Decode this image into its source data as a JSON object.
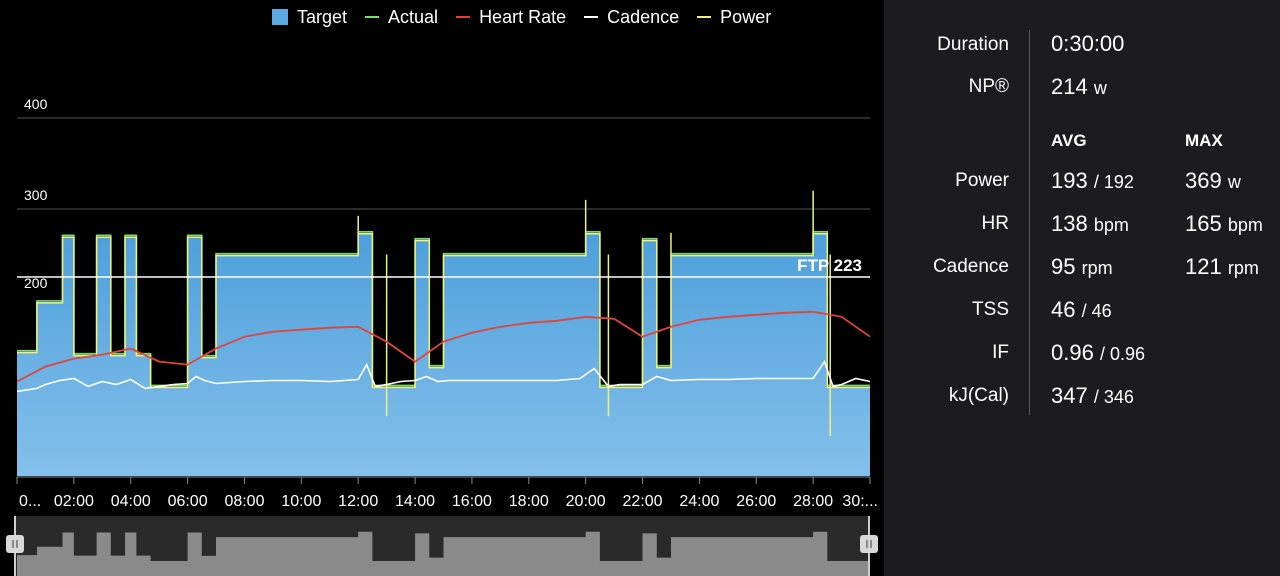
{
  "legend": [
    {
      "label": "Target",
      "color": "#5aa9e1",
      "kind": "box"
    },
    {
      "label": "Actual",
      "color": "#7ddc6a",
      "kind": "line"
    },
    {
      "label": "Heart Rate",
      "color": "#e0453a",
      "kind": "line"
    },
    {
      "label": "Cadence",
      "color": "#ffffff",
      "kind": "line"
    },
    {
      "label": "Power",
      "color": "#f2f27a",
      "kind": "line"
    }
  ],
  "chart_data": {
    "type": "area",
    "ylim": [
      0,
      420
    ],
    "y_ticks": [
      "200",
      "300",
      "400"
    ],
    "x_ticks": [
      "0...",
      "02:00",
      "04:00",
      "06:00",
      "08:00",
      "10:00",
      "12:00",
      "14:00",
      "16:00",
      "18:00",
      "20:00",
      "22:00",
      "24:00",
      "26:00",
      "28:00",
      "30:..."
    ],
    "ftp_label": "FTP 223",
    "ftp_value": 223,
    "series": [
      {
        "name": "Target",
        "x": [
          0,
          0.7,
          0.7,
          1.6,
          1.6,
          2.0,
          2.0,
          2.8,
          2.8,
          3.3,
          3.3,
          3.8,
          3.8,
          4.2,
          4.2,
          4.7,
          4.7,
          6.0,
          6.0,
          6.5,
          6.5,
          7.0,
          7.0,
          12.0,
          12.0,
          12.5,
          12.5,
          14.0,
          14.0,
          14.5,
          14.5,
          15.0,
          15.0,
          20.0,
          20.0,
          20.5,
          20.5,
          22.0,
          22.0,
          22.5,
          22.5,
          23.0,
          23.0,
          28.0,
          28.0,
          28.5,
          28.5,
          30.0
        ],
        "values": [
          125,
          125,
          175,
          175,
          260,
          260,
          122,
          122,
          260,
          260,
          122,
          122,
          260,
          260,
          122,
          122,
          90,
          90,
          260,
          260,
          120,
          120,
          233,
          233,
          265,
          265,
          90,
          90,
          255,
          255,
          110,
          110,
          233,
          233,
          265,
          265,
          90,
          90,
          255,
          255,
          110,
          110,
          233,
          233,
          265,
          265,
          90,
          90
        ]
      },
      {
        "name": "Heart Rate",
        "x": [
          0,
          1,
          2,
          3,
          4,
          5,
          6,
          7,
          8,
          9,
          10,
          11,
          12,
          13,
          14,
          15,
          16,
          17,
          18,
          19,
          20,
          21,
          22,
          23,
          24,
          25,
          26,
          27,
          28,
          29,
          30
        ],
        "values": [
          95,
          110,
          118,
          122,
          128,
          115,
          112,
          128,
          140,
          145,
          147,
          149,
          150,
          135,
          115,
          135,
          144,
          150,
          154,
          156,
          160,
          158,
          140,
          150,
          157,
          160,
          162,
          164,
          165,
          160,
          140
        ]
      },
      {
        "name": "Cadence",
        "x": [
          0,
          0.7,
          1.0,
          1.5,
          2.0,
          2.5,
          3.0,
          3.5,
          4.0,
          4.5,
          5.0,
          5.5,
          6.0,
          6.3,
          6.6,
          7.0,
          8.0,
          9.0,
          10.0,
          11.0,
          12.0,
          12.3,
          12.6,
          13.0,
          13.5,
          14.0,
          14.4,
          14.8,
          15.2,
          16.0,
          17.0,
          18.0,
          19.0,
          19.8,
          20.3,
          20.8,
          21.2,
          22.0,
          22.5,
          23.0,
          24.0,
          25.0,
          26.0,
          27.0,
          28.0,
          28.4,
          28.7,
          29.0,
          29.5,
          30.0
        ],
        "values": [
          85,
          88,
          92,
          96,
          98,
          90,
          95,
          92,
          97,
          88,
          90,
          92,
          93,
          100,
          96,
          93,
          95,
          96,
          96,
          95,
          97,
          112,
          90,
          92,
          95,
          96,
          100,
          95,
          96,
          96,
          96,
          96,
          96,
          98,
          108,
          90,
          92,
          92,
          100,
          96,
          97,
          97,
          98,
          98,
          98,
          115,
          90,
          92,
          98,
          95
        ]
      }
    ]
  },
  "stats": {
    "duration": {
      "label": "Duration",
      "value": "0:30:00"
    },
    "np": {
      "label": "NP®",
      "value": "214",
      "unit": "w"
    },
    "avg_header": "AVG",
    "max_header": "MAX",
    "rows": [
      {
        "label": "Power",
        "avg": "193",
        "avg_sub": "/ 192",
        "max": "369",
        "max_unit": "w"
      },
      {
        "label": "HR",
        "avg": "138",
        "avg_sub": "bpm",
        "max": "165",
        "max_unit": "bpm"
      },
      {
        "label": "Cadence",
        "avg": "95",
        "avg_sub": "rpm",
        "max": "121",
        "max_unit": "rpm"
      },
      {
        "label": "TSS",
        "avg": "46",
        "avg_sub": "/ 46",
        "max": "",
        "max_unit": ""
      },
      {
        "label": "IF",
        "avg": "0.96",
        "avg_sub": "/ 0.96",
        "max": "",
        "max_unit": ""
      },
      {
        "label": "kJ(Cal)",
        "avg": "347",
        "avg_sub": "/ 346",
        "max": "",
        "max_unit": ""
      }
    ]
  }
}
